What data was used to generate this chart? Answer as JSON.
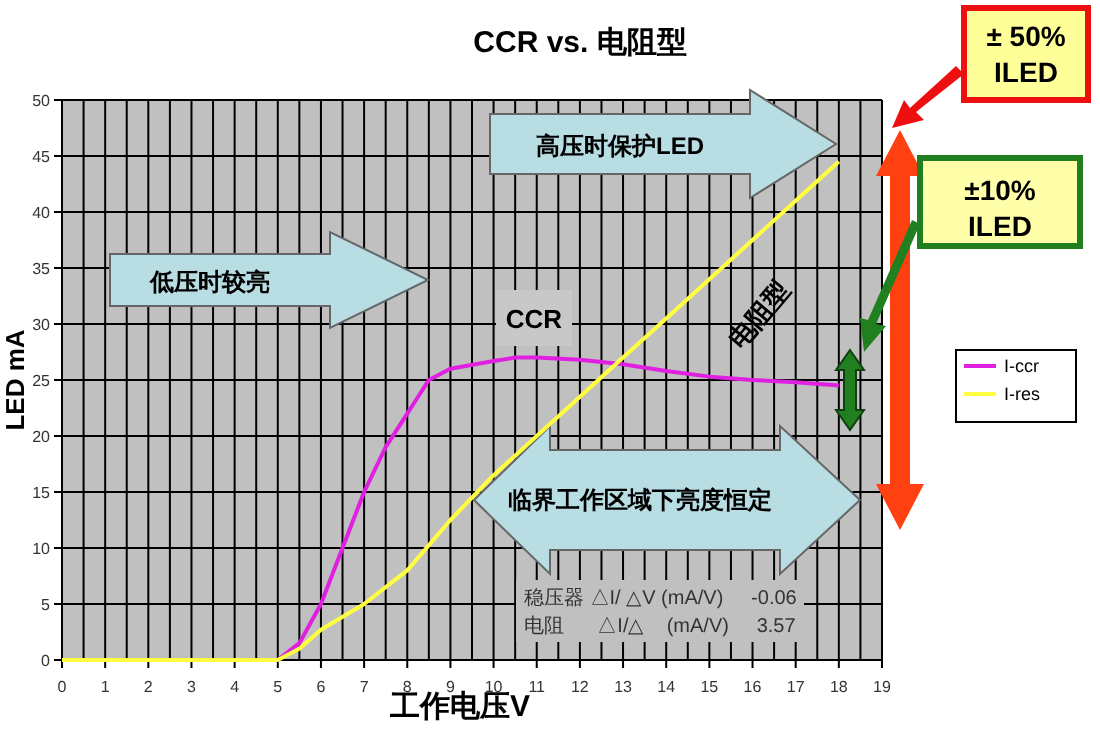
{
  "chart_data": {
    "type": "line",
    "title": "CCR vs. 电阻型",
    "xlabel": "工作电压V",
    "ylabel": "LED mA",
    "xlim": [
      0,
      19
    ],
    "xticks": [
      0,
      1,
      2,
      3,
      4,
      5,
      6,
      7,
      8,
      9,
      10,
      11,
      12,
      13,
      14,
      15,
      16,
      17,
      18,
      19
    ],
    "ylim": [
      0,
      50
    ],
    "yticks": [
      0,
      5,
      10,
      15,
      20,
      25,
      30,
      35,
      40,
      45,
      50
    ],
    "grid": true,
    "legend": "right",
    "marker": "none",
    "line_style": "solid",
    "series": [
      {
        "name": "I-ccr",
        "color": "#e020e0",
        "x": [
          0,
          4.5,
          5,
          5.5,
          6,
          6.5,
          7,
          7.5,
          8,
          8.5,
          9,
          10,
          10.5,
          11,
          12,
          13,
          14,
          15,
          16,
          17,
          18
        ],
        "values": [
          0,
          0,
          0,
          1.5,
          5,
          10,
          15,
          19,
          22,
          25,
          26,
          26.7,
          27,
          27,
          26.8,
          26.4,
          25.8,
          25.3,
          25,
          24.8,
          24.5
        ]
      },
      {
        "name": "I-res",
        "color": "#ffff40",
        "x": [
          0,
          4.5,
          5,
          5.5,
          6,
          7,
          8,
          9,
          10,
          11,
          12,
          13,
          14,
          15,
          16,
          17,
          18
        ],
        "values": [
          0,
          0,
          0,
          1,
          2.7,
          5,
          8,
          12.5,
          16.5,
          20,
          23.5,
          27,
          30.5,
          34,
          37.5,
          41,
          44.5
        ]
      }
    ],
    "annotations": [
      "低压时较亮",
      "高压时保护LED",
      "CCR",
      "电阻型",
      "临界工作区域下亮度恒定",
      "稳压器 △I/ △V (mA/V)     -0.06",
      "电阻      △I/△    (mA/V)     3.57",
      "± 50%\nILED",
      "±10%\nILED"
    ]
  }
}
